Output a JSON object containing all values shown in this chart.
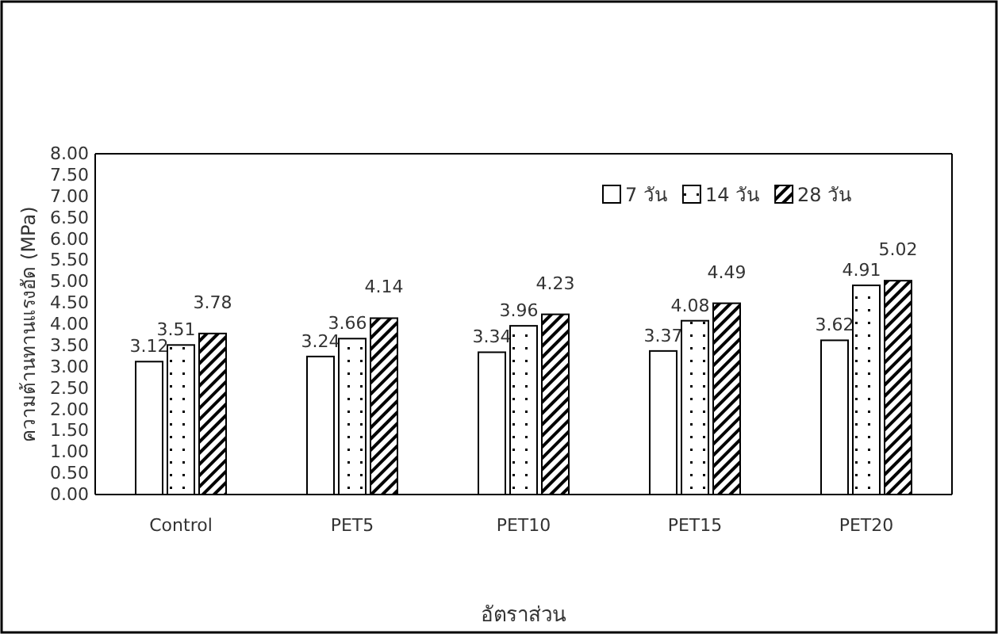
{
  "chart_data": {
    "type": "bar",
    "xlabel": "อัตราส่วน",
    "ylabel": "ความต้านทานแรงอัด (MPa)",
    "categories": [
      "Control",
      "PET5",
      "PET10",
      "PET15",
      "PET20"
    ],
    "series": [
      {
        "name": "7 วัน",
        "color": "#ffffff",
        "values": [
          3.12,
          3.24,
          3.34,
          3.37,
          3.62
        ]
      },
      {
        "name": "14 วัน",
        "color": "#000000",
        "values": [
          3.51,
          3.66,
          3.96,
          4.08,
          4.91
        ]
      },
      {
        "name": "28 วัน",
        "color": "#000000",
        "values": [
          3.78,
          4.14,
          4.23,
          4.49,
          5.02
        ]
      }
    ],
    "ylim": [
      0,
      8
    ],
    "yticks": [
      {
        "value": 0,
        "label": "0.00"
      },
      {
        "value": 0.5,
        "label": "0.50"
      },
      {
        "value": 1,
        "label": "1.00"
      },
      {
        "value": 1.5,
        "label": "1.50"
      },
      {
        "value": 2,
        "label": "2.00"
      },
      {
        "value": 2.5,
        "label": "2.50"
      },
      {
        "value": 3,
        "label": "3.00"
      },
      {
        "value": 3.5,
        "label": "3.50"
      },
      {
        "value": 4,
        "label": "4.00"
      },
      {
        "value": 4.5,
        "label": "4.50"
      },
      {
        "value": 5,
        "label": "5.00"
      },
      {
        "value": 5.5,
        "label": "5.50"
      },
      {
        "value": 6,
        "label": "6.00"
      },
      {
        "value": 6.5,
        "label": "6.50"
      },
      {
        "value": 7,
        "label": "7.00"
      },
      {
        "value": 7.5,
        "label": "7.50"
      },
      {
        "value": 8,
        "label": "8.00"
      }
    ],
    "data_labels": true,
    "legend": "top right",
    "grid": false
  }
}
